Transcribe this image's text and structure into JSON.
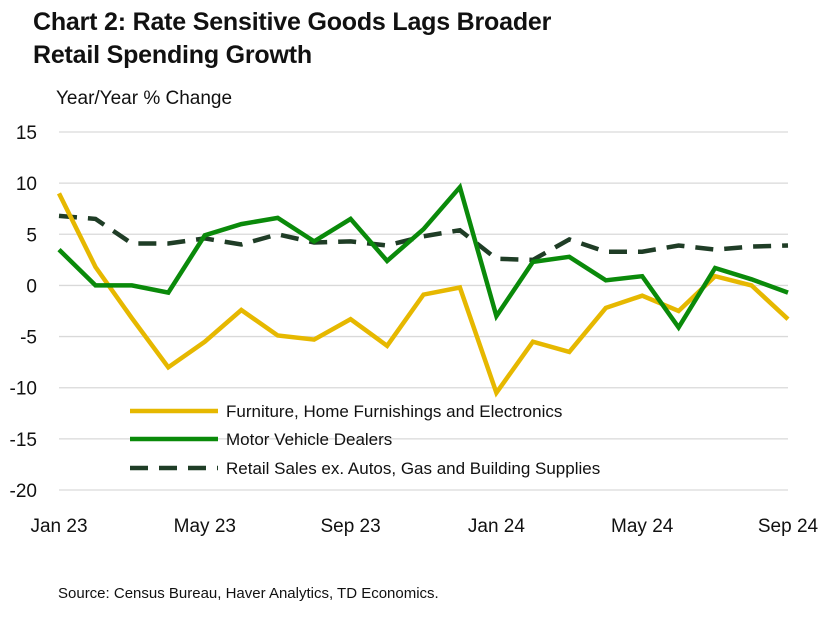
{
  "chart_data": {
    "type": "line",
    "title_line1": "Chart 2: Rate Sensitive Goods Lags Broader",
    "title_line2": "Retail Spending Growth",
    "ylabel": "Year/Year % Change",
    "source": "Source: Census Bureau, Haver Analytics, TD Economics.",
    "ylim": [
      -20,
      15
    ],
    "yticks": [
      15,
      10,
      5,
      0,
      -5,
      -10,
      -15,
      -20
    ],
    "ytick_labels": [
      "15",
      "10",
      "5",
      "0",
      "-5",
      "-10",
      "-15",
      "-20"
    ],
    "xtick_labels": [
      {
        "index": 0,
        "label": "Jan 23"
      },
      {
        "index": 4,
        "label": "May 23"
      },
      {
        "index": 8,
        "label": "Sep 23"
      },
      {
        "index": 12,
        "label": "Jan 24"
      },
      {
        "index": 16,
        "label": "May 24"
      },
      {
        "index": 20,
        "label": "Sep 24"
      }
    ],
    "x": [
      "Jan 23",
      "Feb 23",
      "Mar 23",
      "Apr 23",
      "May 23",
      "Jun 23",
      "Jul 23",
      "Aug 23",
      "Sep 23",
      "Oct 23",
      "Nov 23",
      "Dec 23",
      "Jan 24",
      "Feb 24",
      "Mar 24",
      "Apr 24",
      "May 24",
      "Jun 24",
      "Jul 24",
      "Aug 24",
      "Sep 24"
    ],
    "grid": true,
    "legend_position": "lower-center",
    "series": [
      {
        "name": "Furniture, Home Furnishings and Electronics",
        "color": "#e6b800",
        "style": "solid",
        "values": [
          9.0,
          1.8,
          -3.2,
          -8.0,
          -5.5,
          -2.4,
          -4.9,
          -5.3,
          -3.3,
          -5.9,
          -0.9,
          -0.2,
          -10.5,
          -5.5,
          -6.5,
          -2.2,
          -1.0,
          -2.5,
          0.9,
          0.0,
          -3.3
        ]
      },
      {
        "name": "Motor Vehicle Dealers",
        "color": "#0a8a0a",
        "style": "solid",
        "values": [
          3.5,
          0.0,
          0.0,
          -0.7,
          4.9,
          6.0,
          6.6,
          4.3,
          6.5,
          2.4,
          5.5,
          9.6,
          -3.0,
          2.3,
          2.8,
          0.5,
          0.9,
          -4.1,
          1.7,
          0.6,
          -0.7
        ]
      },
      {
        "name": "Retail Sales ex. Autos, Gas and Building Supplies",
        "color": "#1f3d26",
        "style": "dashed",
        "values": [
          6.8,
          6.5,
          4.1,
          4.1,
          4.6,
          4.0,
          5.0,
          4.2,
          4.3,
          3.9,
          4.8,
          5.4,
          2.6,
          2.5,
          4.5,
          3.3,
          3.3,
          3.9,
          3.5,
          3.8,
          3.9
        ]
      }
    ]
  }
}
